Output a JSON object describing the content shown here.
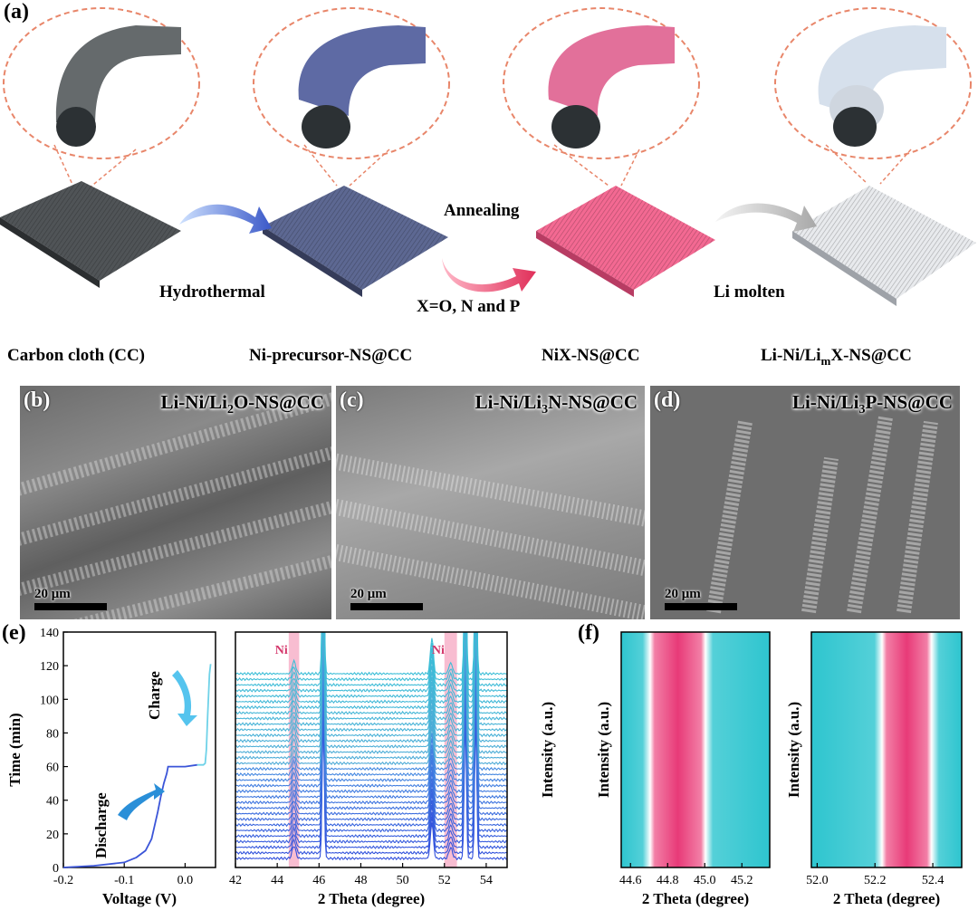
{
  "panel_a": {
    "label": "(a)",
    "steps": [
      {
        "caption": "Carbon cloth (CC)",
        "color": "#4f5356"
      },
      {
        "caption": "Ni-precursor-NS@CC",
        "color": "#5b6690"
      },
      {
        "caption": "NiX-NS@CC",
        "color": "#f06890"
      },
      {
        "caption": "Li-Ni/Li",
        "caption_sub": "m",
        "caption_end": "X-NS@CC",
        "color": "#dfe2e6"
      }
    ],
    "arrows": {
      "hydrothermal": "Hydrothermal",
      "annealing": "Annealing",
      "annealing_note": "X=O, N and P",
      "li_molten": "Li molten"
    }
  },
  "sem": [
    {
      "label": "(b)",
      "title_pre": "Li-Ni/Li",
      "title_sub": "2",
      "title_post": "O-NS@CC",
      "scale": "20 μm"
    },
    {
      "label": "(c)",
      "title_pre": "Li-Ni/Li",
      "title_sub": "3",
      "title_post": "N-NS@CC",
      "scale": "20 μm"
    },
    {
      "label": "(d)",
      "title_pre": "Li-Ni/Li",
      "title_sub": "3",
      "title_post": "P-NS@CC",
      "scale": "20 μm"
    }
  ],
  "panel_e_label": "(e)",
  "panel_f_label": "(f)",
  "chart_data": [
    {
      "type": "line",
      "title": "",
      "xlabel": "Voltage (V)",
      "ylabel": "Time (min)",
      "xlim": [
        -0.2,
        0.05
      ],
      "ylim": [
        0,
        140
      ],
      "xticks": [
        "-0.2",
        "-0.1",
        "0.0"
      ],
      "yticks": [
        "0",
        "20",
        "40",
        "60",
        "80",
        "100",
        "120",
        "140"
      ],
      "annotations": [
        "Discharge",
        "Charge"
      ],
      "series": [
        {
          "name": "Discharge",
          "x": [
            -0.2,
            -0.15,
            -0.1,
            -0.08,
            -0.065,
            -0.055,
            -0.05,
            -0.045,
            -0.04,
            -0.035,
            -0.03,
            -0.028,
            0.0,
            0.02
          ],
          "y": [
            0,
            1,
            3,
            6,
            10,
            17,
            25,
            33,
            42,
            50,
            56,
            60,
            60,
            61
          ]
        },
        {
          "name": "Charge",
          "x": [
            0.02,
            0.025,
            0.03,
            0.033,
            0.035,
            0.037,
            0.04,
            0.042
          ],
          "y": [
            61,
            61,
            61,
            62,
            70,
            90,
            115,
            121
          ]
        }
      ]
    },
    {
      "type": "line",
      "title": "",
      "xlabel": "2 Theta (degree)",
      "ylabel": "Intensity (a.u.)",
      "xlim": [
        42,
        55
      ],
      "xticks": [
        "42",
        "44",
        "46",
        "48",
        "50",
        "52",
        "54"
      ],
      "annotations": [
        "Ni",
        "Ni"
      ],
      "highlight_bands": [
        [
          44.55,
          45.05
        ],
        [
          52.0,
          52.6
        ]
      ],
      "peaks": [
        44.8,
        46.2,
        51.4,
        52.3,
        53.0,
        53.5
      ],
      "scan_count": 34
    },
    {
      "type": "heatmap",
      "xlabel": "2 Theta (degree)",
      "ylabel": "Intensity (a.u.)",
      "xlim": [
        44.55,
        45.35
      ],
      "xticks": [
        "44.6",
        "44.8",
        "45.0",
        "45.2"
      ],
      "pink_band": [
        44.73,
        44.98
      ]
    },
    {
      "type": "heatmap",
      "xlabel": "2 Theta (degree)",
      "ylabel": "Intensity (a.u.)",
      "xlim": [
        51.98,
        52.5
      ],
      "xticks": [
        "52.0",
        "52.2",
        "52.4"
      ],
      "pink_band": [
        52.24,
        52.38
      ]
    }
  ]
}
